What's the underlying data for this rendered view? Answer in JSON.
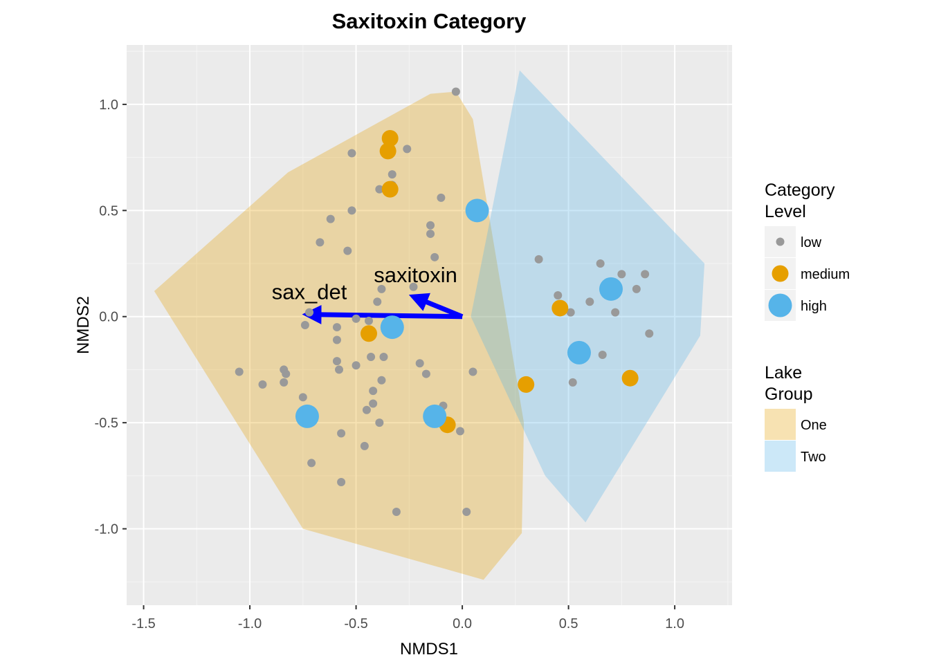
{
  "chart_data": {
    "type": "scatter",
    "title": "Saxitoxin Category",
    "xlabel": "NMDS1",
    "ylabel": "NMDS2",
    "xlim": [
      -1.58,
      1.27
    ],
    "ylim": [
      -1.36,
      1.28
    ],
    "x_ticks": [
      -1.5,
      -1.0,
      -0.5,
      0.0,
      0.5,
      1.0
    ],
    "x_tick_labels": [
      "-1.5",
      "-1.0",
      "-0.5",
      "0.0",
      "0.5",
      "1.0"
    ],
    "y_ticks": [
      -1.0,
      -0.5,
      0.0,
      0.5,
      1.0
    ],
    "y_tick_labels": [
      "-1.0",
      "-0.5",
      "0.0",
      "0.5",
      "1.0"
    ],
    "grid": true,
    "background_color": "#ebebeb",
    "groups": [
      {
        "name": "One",
        "color": "#e69f00",
        "hull": [
          [
            -1.45,
            0.12
          ],
          [
            -0.82,
            0.68
          ],
          [
            -0.15,
            1.05
          ],
          [
            -0.03,
            1.06
          ],
          [
            0.05,
            0.93
          ],
          [
            0.29,
            -0.5
          ],
          [
            0.28,
            -1.02
          ],
          [
            0.1,
            -1.24
          ],
          [
            -0.75,
            -1.0
          ]
        ]
      },
      {
        "name": "Two",
        "color": "#56b4e9",
        "hull": [
          [
            0.27,
            1.16
          ],
          [
            1.14,
            0.25
          ],
          [
            1.12,
            -0.09
          ],
          [
            0.58,
            -0.97
          ],
          [
            0.39,
            -0.75
          ],
          [
            0.04,
            0.0
          ]
        ]
      }
    ],
    "legend_category": {
      "title": "Category Level",
      "entries": [
        {
          "label": "low",
          "color": "#999999",
          "size": "small"
        },
        {
          "label": "medium",
          "color": "#e69f00",
          "size": "medium"
        },
        {
          "label": "high",
          "color": "#56b4e9",
          "size": "large"
        }
      ]
    },
    "legend_lake": {
      "title": "Lake Group",
      "entries": [
        {
          "label": "One",
          "color": "#e69f00"
        },
        {
          "label": "Two",
          "color": "#56b4e9"
        }
      ]
    },
    "legend_placement": "right",
    "points": {
      "low": [
        [
          -0.03,
          1.06
        ],
        [
          -0.52,
          0.77
        ],
        [
          -0.26,
          0.79
        ],
        [
          -0.33,
          0.67
        ],
        [
          -0.33,
          0.62
        ],
        [
          -0.39,
          0.6
        ],
        [
          -0.1,
          0.56
        ],
        [
          -0.52,
          0.5
        ],
        [
          -0.62,
          0.46
        ],
        [
          -0.15,
          0.43
        ],
        [
          -0.15,
          0.39
        ],
        [
          -0.67,
          0.35
        ],
        [
          -0.54,
          0.31
        ],
        [
          -0.13,
          0.28
        ],
        [
          -0.23,
          0.14
        ],
        [
          -0.38,
          0.13
        ],
        [
          -0.4,
          0.07
        ],
        [
          -0.72,
          0.02
        ],
        [
          -0.5,
          -0.01
        ],
        [
          -0.44,
          -0.02
        ],
        [
          -0.74,
          -0.04
        ],
        [
          -0.59,
          -0.05
        ],
        [
          -0.59,
          -0.11
        ],
        [
          -0.43,
          -0.19
        ],
        [
          -0.37,
          -0.19
        ],
        [
          -0.59,
          -0.21
        ],
        [
          -0.2,
          -0.22
        ],
        [
          -0.58,
          -0.25
        ],
        [
          -0.5,
          -0.23
        ],
        [
          -0.17,
          -0.27
        ],
        [
          -1.05,
          -0.26
        ],
        [
          -0.84,
          -0.25
        ],
        [
          -0.83,
          -0.27
        ],
        [
          -0.94,
          -0.32
        ],
        [
          -0.84,
          -0.31
        ],
        [
          -0.38,
          -0.3
        ],
        [
          -0.42,
          -0.35
        ],
        [
          -0.75,
          -0.38
        ],
        [
          -0.42,
          -0.41
        ],
        [
          -0.45,
          -0.44
        ],
        [
          -0.09,
          -0.42
        ],
        [
          -0.39,
          -0.5
        ],
        [
          -0.57,
          -0.55
        ],
        [
          -0.46,
          -0.61
        ],
        [
          -0.71,
          -0.69
        ],
        [
          -0.57,
          -0.78
        ],
        [
          -0.31,
          -0.92
        ],
        [
          0.02,
          -0.92
        ],
        [
          -0.01,
          -0.54
        ],
        [
          0.05,
          -0.26
        ],
        [
          0.36,
          0.27
        ],
        [
          0.65,
          0.25
        ],
        [
          0.75,
          0.2
        ],
        [
          0.86,
          0.2
        ],
        [
          0.45,
          0.1
        ],
        [
          0.6,
          0.07
        ],
        [
          0.82,
          0.13
        ],
        [
          0.51,
          0.02
        ],
        [
          0.72,
          0.02
        ],
        [
          0.88,
          -0.08
        ],
        [
          0.66,
          -0.18
        ],
        [
          0.52,
          -0.31
        ]
      ],
      "medium": [
        [
          -0.34,
          0.84
        ],
        [
          -0.35,
          0.78
        ],
        [
          -0.34,
          0.6
        ],
        [
          0.46,
          0.04
        ],
        [
          -0.44,
          -0.08
        ],
        [
          0.3,
          -0.32
        ],
        [
          0.79,
          -0.29
        ],
        [
          -0.07,
          -0.51
        ]
      ],
      "high": [
        [
          0.07,
          0.5
        ],
        [
          0.7,
          0.13
        ],
        [
          -0.33,
          -0.05
        ],
        [
          0.55,
          -0.17
        ],
        [
          -0.73,
          -0.47
        ],
        [
          -0.13,
          -0.47
        ]
      ]
    },
    "vectors": [
      {
        "label": "saxitoxin",
        "x": -0.22,
        "y": 0.09,
        "color": "#0000ff"
      },
      {
        "label": "sax_det",
        "x": -0.72,
        "y": 0.01,
        "color": "#0000ff"
      }
    ]
  }
}
